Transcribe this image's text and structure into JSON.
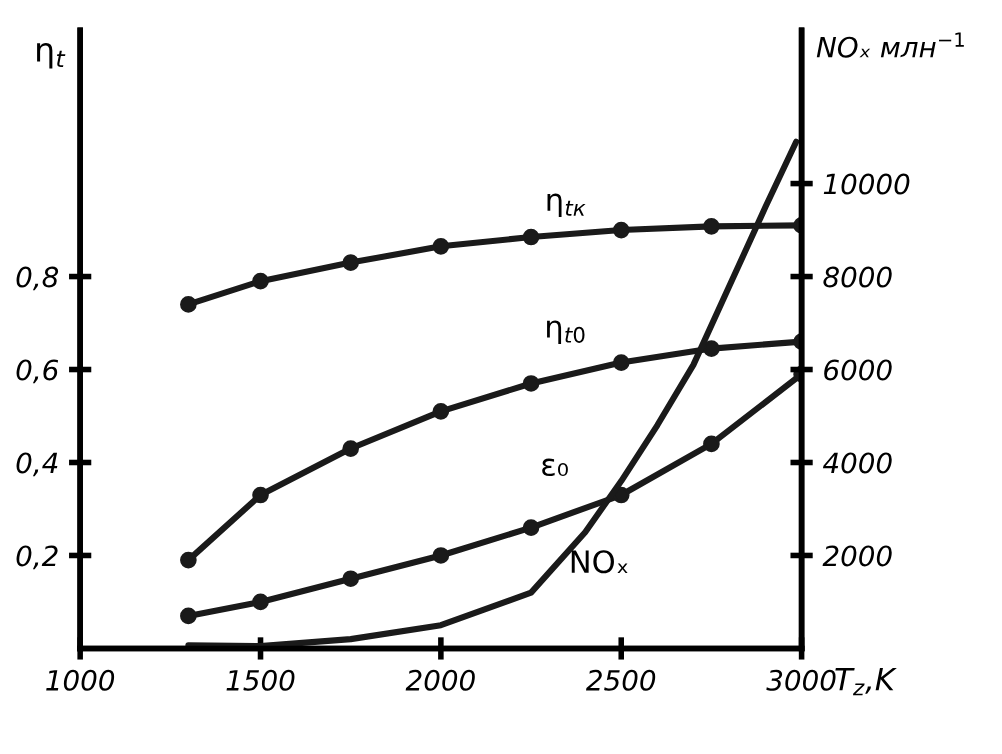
{
  "chart_data": {
    "type": "line",
    "xlabel": "T$_{z}$,K",
    "ylabel": "η$_{t}$",
    "y2label": "NOₓ млн$^{−1}$",
    "xlim": [
      1000,
      3000
    ],
    "xticks": [
      1000,
      1500,
      2000,
      2500,
      3000
    ],
    "ylim": [
      0,
      1.33
    ],
    "yticks": [
      {
        "value": 0.2,
        "label": "0,2"
      },
      {
        "value": 0.4,
        "label": "0,4"
      },
      {
        "value": 0.6,
        "label": "0,6"
      },
      {
        "value": 0.8,
        "label": "0,8"
      }
    ],
    "y2lim": [
      0,
      13300
    ],
    "y2ticks": [
      2000,
      4000,
      6000,
      8000,
      10000
    ],
    "marker": "circle",
    "grid": false,
    "legend": false,
    "series": [
      {
        "name": "η$_{tк}$",
        "color": "#1a1a1a",
        "x": [
          1300,
          1500,
          1750,
          2000,
          2250,
          2500,
          2750,
          3000
        ],
        "values": [
          0.74,
          0.79,
          0.83,
          0.865,
          0.885,
          0.9,
          0.908,
          0.91
        ]
      },
      {
        "name": "η$_{t0}$",
        "color": "#1a1a1a",
        "x": [
          1300,
          1500,
          1750,
          2000,
          2250,
          2500,
          2750,
          3000
        ],
        "values": [
          0.19,
          0.33,
          0.43,
          0.51,
          0.57,
          0.615,
          0.645,
          0.66
        ]
      },
      {
        "name": "ε₀",
        "color": "#1a1a1a",
        "x": [
          1300,
          1500,
          1750,
          2000,
          2250,
          2500,
          2750,
          3000
        ],
        "values": [
          0.07,
          0.1,
          0.15,
          0.2,
          0.26,
          0.33,
          0.44,
          0.59
        ]
      },
      {
        "name": "NOₓ",
        "color": "#1a1a1a",
        "axis": "y2",
        "marker": "none",
        "x": [
          1300,
          1500,
          1750,
          2000,
          2250,
          2400,
          2500,
          2600,
          2700,
          2800,
          2900,
          2985
        ],
        "values": [
          70,
          50,
          200,
          500,
          1200,
          2500,
          3600,
          4800,
          6100,
          7800,
          9500,
          10900
        ]
      }
    ]
  }
}
